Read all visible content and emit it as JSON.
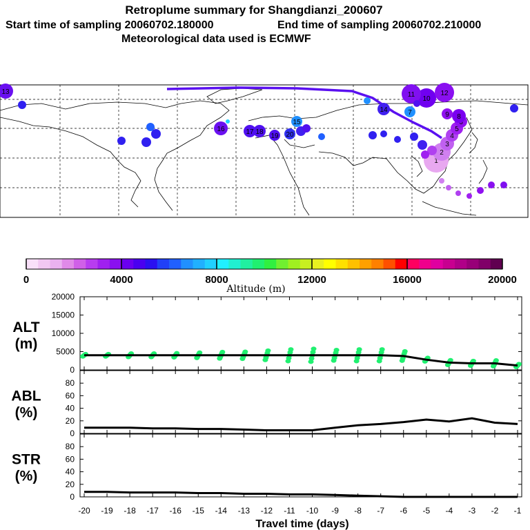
{
  "header": {
    "title": "Retroplume summary for Shangdianzi_200607",
    "start_label": "Start time of sampling 20060702.180000",
    "end_label": "End time of sampling 20060702.210000",
    "met_label": "Meteorological data used is ECMWF"
  },
  "colorbar": {
    "label": "Altitude (m)",
    "ticks": [
      "0",
      "4000",
      "8000",
      "12000",
      "16000",
      "20000"
    ],
    "min": 0,
    "max": 20000,
    "colors": [
      "#f9e0f9",
      "#f2c8f2",
      "#eab2f0",
      "#e08ae8",
      "#d060e8",
      "#b83cf0",
      "#a020f0",
      "#8a10f0",
      "#6a00f0",
      "#4a00f0",
      "#2a10f0",
      "#2040f8",
      "#2060ff",
      "#2090ff",
      "#20b0ff",
      "#20d0ff",
      "#20f0ff",
      "#20f0d0",
      "#20f0a0",
      "#20f070",
      "#30f040",
      "#70f030",
      "#a0f020",
      "#c8f020",
      "#e8f020",
      "#ffff00",
      "#ffe000",
      "#ffc000",
      "#ffa000",
      "#ff8000",
      "#ff5000",
      "#ff0000",
      "#ff0060",
      "#f0008c",
      "#e000a0",
      "#c80090",
      "#b00088",
      "#980078",
      "#800068",
      "#600050"
    ]
  },
  "map": {
    "plume_labels": [
      "1",
      "2",
      "3",
      "4",
      "5",
      "6",
      "7",
      "8",
      "9",
      "10",
      "11",
      "12",
      "13",
      "14",
      "15",
      "16",
      "17",
      "18",
      "19",
      "20"
    ]
  },
  "chart_data": [
    {
      "type": "line",
      "name": "ALT",
      "ylabel": "ALT\n(m)",
      "ylabel_line1": "ALT",
      "ylabel_line2": "(m)",
      "ylim": [
        0,
        20000
      ],
      "yticks": [
        "0",
        "5000",
        "10000",
        "15000",
        "20000"
      ],
      "x": [
        -20,
        -19,
        -18,
        -17,
        -16,
        -15,
        -14,
        -13,
        -12,
        -11,
        -10,
        -9,
        -8,
        -7,
        -6,
        -5,
        -4,
        -3,
        -2,
        -1
      ],
      "series": [
        {
          "name": "median",
          "values": [
            4000,
            4000,
            4000,
            4000,
            4000,
            4000,
            4000,
            4000,
            4000,
            4000,
            4000,
            4000,
            4000,
            4000,
            3800,
            2800,
            2000,
            1800,
            1800,
            1200
          ]
        }
      ],
      "scatter_color": "#20f070"
    },
    {
      "type": "line",
      "name": "ABL",
      "ylabel_line1": "ABL",
      "ylabel_line2": "(%)",
      "ylim": [
        0,
        100
      ],
      "yticks": [
        "0",
        "20",
        "40",
        "60",
        "80"
      ],
      "x": [
        -20,
        -19,
        -18,
        -17,
        -16,
        -15,
        -14,
        -13,
        -12,
        -11,
        -10,
        -9,
        -8,
        -7,
        -6,
        -5,
        -4,
        -3,
        -2,
        -1
      ],
      "series": [
        {
          "name": "ABL",
          "values": [
            9,
            9,
            9,
            8,
            8,
            7,
            7,
            6,
            5,
            5,
            5,
            9,
            13,
            15,
            18,
            22,
            19,
            24,
            17,
            15
          ]
        }
      ]
    },
    {
      "type": "line",
      "name": "STR",
      "ylabel_line1": "STR",
      "ylabel_line2": "(%)",
      "ylim": [
        0,
        100
      ],
      "yticks": [
        "0",
        "20",
        "40",
        "60",
        "80"
      ],
      "x": [
        -20,
        -19,
        -18,
        -17,
        -16,
        -15,
        -14,
        -13,
        -12,
        -11,
        -10,
        -9,
        -8,
        -7,
        -6,
        -5,
        -4,
        -3,
        -2,
        -1
      ],
      "series": [
        {
          "name": "STR",
          "values": [
            8,
            8,
            7,
            7,
            7,
            6,
            6,
            5,
            5,
            4,
            4,
            3,
            2,
            1,
            0,
            0,
            0,
            0,
            0,
            0
          ]
        }
      ]
    }
  ],
  "xaxis": {
    "label": "Travel time (days)",
    "ticks": [
      "-20",
      "-19",
      "-18",
      "-17",
      "-16",
      "-15",
      "-14",
      "-13",
      "-12",
      "-11",
      "-10",
      "-9",
      "-8",
      "-7",
      "-6",
      "-5",
      "-4",
      "-3",
      "-2",
      "-1"
    ]
  }
}
